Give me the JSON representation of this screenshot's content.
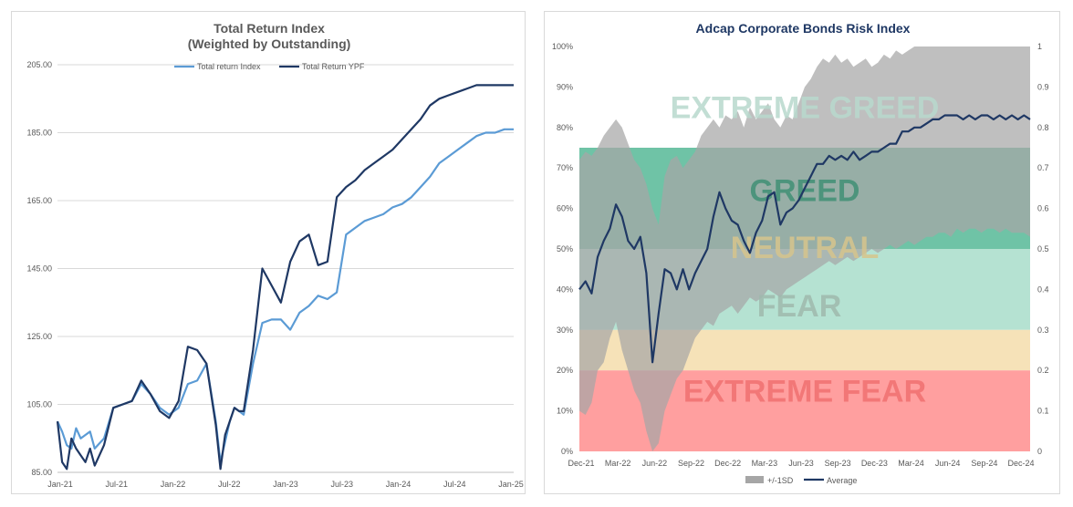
{
  "chart_data": [
    {
      "type": "line",
      "title": "Total Return Index",
      "subtitle": "(Weighted by Outstanding)",
      "ylim": [
        85,
        205
      ],
      "y_ticks": [
        "85.00",
        "105.00",
        "125.00",
        "145.00",
        "165.00",
        "185.00",
        "205.00"
      ],
      "x_ticks": [
        "Jan-21",
        "Jul-21",
        "Jan-22",
        "Jul-22",
        "Jan-23",
        "Jul-23",
        "Jan-24",
        "Jul-24",
        "Jan-25"
      ],
      "grid": true,
      "legend_position": "top",
      "series": [
        {
          "name": "Total return Index",
          "color": "#5b9bd5",
          "x": [
            0,
            0.5,
            1,
            1.5,
            2,
            2.5,
            3,
            3.5,
            4,
            5,
            6,
            7,
            8,
            9,
            10,
            11,
            12,
            13,
            14,
            15,
            16,
            17,
            17.5,
            18,
            18.5,
            19,
            19.5,
            20,
            21,
            22,
            23,
            24,
            25,
            26,
            27,
            28,
            29,
            30,
            31,
            32,
            33,
            34,
            35,
            36,
            37,
            38,
            39,
            40,
            41,
            42,
            43,
            44,
            45,
            46,
            47,
            48,
            49
          ],
          "y": [
            100,
            97,
            93,
            92,
            98,
            95,
            96,
            97,
            92,
            95,
            104,
            105,
            106,
            111,
            108,
            104,
            102,
            104,
            111,
            112,
            117,
            100,
            88,
            94,
            100,
            104,
            103,
            102,
            117,
            129,
            130,
            130,
            127,
            132,
            134,
            137,
            136,
            138,
            155,
            157,
            159,
            160,
            161,
            163,
            164,
            166,
            169,
            172,
            176,
            178,
            180,
            182,
            184,
            185,
            185,
            186,
            186
          ]
        },
        {
          "name": "Total Return YPF",
          "color": "#1f3864",
          "x": [
            0,
            0.5,
            1,
            1.5,
            2,
            2.5,
            3,
            3.5,
            4,
            5,
            6,
            7,
            8,
            9,
            10,
            11,
            12,
            13,
            14,
            15,
            16,
            17,
            17.5,
            18,
            18.5,
            19,
            19.5,
            20,
            21,
            22,
            23,
            24,
            25,
            26,
            27,
            28,
            29,
            30,
            31,
            32,
            33,
            34,
            35,
            36,
            37,
            38,
            39,
            40,
            41,
            42,
            43,
            44,
            45,
            46,
            47,
            48,
            49
          ],
          "y": [
            100,
            88,
            86,
            95,
            92,
            90,
            88,
            92,
            87,
            93,
            104,
            105,
            106,
            112,
            108,
            103,
            101,
            106,
            122,
            121,
            117,
            99,
            86,
            96,
            100,
            104,
            103,
            103,
            121,
            145,
            140,
            135,
            147,
            153,
            155,
            146,
            147,
            166,
            169,
            171,
            174,
            176,
            178,
            180,
            183,
            186,
            189,
            193,
            195,
            196,
            197,
            198,
            199,
            199,
            199,
            199,
            199
          ]
        }
      ]
    },
    {
      "type": "line",
      "title": "Adcap Corporate Bonds Risk Index",
      "ylim": [
        0,
        1
      ],
      "y_ticks_left": [
        "0%",
        "10%",
        "20%",
        "30%",
        "40%",
        "50%",
        "60%",
        "70%",
        "80%",
        "90%",
        "100%"
      ],
      "y_ticks_right": [
        "0",
        "0.1",
        "0.2",
        "0.3",
        "0.4",
        "0.5",
        "0.6",
        "0.7",
        "0.8",
        "0.9",
        "1"
      ],
      "x_ticks": [
        "Dec-21",
        "Mar-22",
        "Jun-22",
        "Sep-22",
        "Dec-22",
        "Mar-23",
        "Jun-23",
        "Sep-23",
        "Dec-23",
        "Mar-24",
        "Jun-24",
        "Sep-24",
        "Dec-24"
      ],
      "legend_position": "bottom",
      "bands": [
        {
          "label": "EXTREME GREED",
          "from": 0.75,
          "to": 1.0,
          "fill": "#ffffff",
          "text_color": "#b7d8cc"
        },
        {
          "label": "GREED",
          "from": 0.5,
          "to": 0.75,
          "fill": "#6fc3a6",
          "text_color": "#3f8f74"
        },
        {
          "label": "NEUTRAL",
          "from": 0.3,
          "to": 0.5,
          "fill": "#b5e2d2",
          "text_color": "#d6c48c"
        },
        {
          "label": "FEAR",
          "from": 0.3,
          "to": 0.5,
          "fill": "#b5e2d2",
          "text_color": "#9fb8ad"
        },
        {
          "label": "",
          "from": 0.2,
          "to": 0.3,
          "fill": "#f6e2b8",
          "text_color": "#e0a070"
        },
        {
          "label": "EXTREME FEAR",
          "from": 0.0,
          "to": 0.2,
          "fill": "#ff9f9f",
          "text_color": "#f07070"
        }
      ],
      "series": [
        {
          "name": "+/-1SD",
          "color": "#a6a6a6",
          "x": [
            0,
            0.5,
            1,
            1.5,
            2,
            2.5,
            3,
            3.5,
            4,
            4.5,
            5,
            5.5,
            6,
            6.5,
            7,
            7.5,
            8,
            8.5,
            9,
            9.5,
            10,
            10.5,
            11,
            11.5,
            12,
            12.5,
            13,
            13.5,
            14,
            14.5,
            15,
            15.5,
            16,
            16.5,
            17,
            17.5,
            18,
            18.5,
            19,
            19.5,
            20,
            20.5,
            21,
            21.5,
            22,
            22.5,
            23,
            23.5,
            24,
            24.5,
            25,
            25.5,
            26,
            26.5,
            27,
            27.5,
            28,
            28.5,
            29,
            29.5,
            30,
            30.5,
            31,
            31.5,
            32,
            32.5,
            33,
            33.5,
            34,
            34.5,
            35,
            35.5,
            36,
            36.5,
            37
          ],
          "upper": [
            0.72,
            0.74,
            0.73,
            0.75,
            0.78,
            0.8,
            0.82,
            0.8,
            0.76,
            0.72,
            0.7,
            0.66,
            0.6,
            0.56,
            0.68,
            0.72,
            0.73,
            0.7,
            0.72,
            0.74,
            0.78,
            0.8,
            0.82,
            0.8,
            0.83,
            0.82,
            0.84,
            0.8,
            0.85,
            0.82,
            0.84,
            0.86,
            0.82,
            0.8,
            0.83,
            0.82,
            0.86,
            0.9,
            0.92,
            0.95,
            0.97,
            0.96,
            0.98,
            0.96,
            0.97,
            0.95,
            0.96,
            0.97,
            0.95,
            0.96,
            0.98,
            0.97,
            0.99,
            0.98,
            0.99,
            1,
            1,
            1,
            1,
            1,
            1,
            1,
            1,
            1,
            1,
            1,
            1,
            1,
            1,
            1,
            1,
            1,
            1,
            1,
            1
          ],
          "lower": [
            0.1,
            0.09,
            0.12,
            0.2,
            0.22,
            0.28,
            0.32,
            0.25,
            0.2,
            0.15,
            0.12,
            0.05,
            0.0,
            0.02,
            0.1,
            0.14,
            0.18,
            0.2,
            0.24,
            0.28,
            0.3,
            0.32,
            0.31,
            0.34,
            0.35,
            0.36,
            0.34,
            0.36,
            0.38,
            0.37,
            0.38,
            0.4,
            0.39,
            0.38,
            0.4,
            0.41,
            0.42,
            0.43,
            0.44,
            0.45,
            0.46,
            0.47,
            0.46,
            0.47,
            0.48,
            0.47,
            0.48,
            0.49,
            0.5,
            0.49,
            0.5,
            0.51,
            0.5,
            0.51,
            0.52,
            0.51,
            0.52,
            0.53,
            0.53,
            0.54,
            0.54,
            0.53,
            0.55,
            0.54,
            0.55,
            0.55,
            0.54,
            0.55,
            0.55,
            0.54,
            0.55,
            0.54,
            0.54,
            0.54,
            0.53
          ]
        },
        {
          "name": "Average",
          "color": "#1f3864",
          "x": [
            0,
            0.5,
            1,
            1.5,
            2,
            2.5,
            3,
            3.5,
            4,
            4.5,
            5,
            5.5,
            6,
            6.5,
            7,
            7.5,
            8,
            8.5,
            9,
            9.5,
            10,
            10.5,
            11,
            11.5,
            12,
            12.5,
            13,
            13.5,
            14,
            14.5,
            15,
            15.5,
            16,
            16.5,
            17,
            17.5,
            18,
            18.5,
            19,
            19.5,
            20,
            20.5,
            21,
            21.5,
            22,
            22.5,
            23,
            23.5,
            24,
            24.5,
            25,
            25.5,
            26,
            26.5,
            27,
            27.5,
            28,
            28.5,
            29,
            29.5,
            30,
            30.5,
            31,
            31.5,
            32,
            32.5,
            33,
            33.5,
            34,
            34.5,
            35,
            35.5,
            36,
            36.5,
            37
          ],
          "y": [
            0.4,
            0.42,
            0.39,
            0.48,
            0.52,
            0.55,
            0.61,
            0.58,
            0.52,
            0.5,
            0.53,
            0.44,
            0.22,
            0.34,
            0.45,
            0.44,
            0.4,
            0.45,
            0.4,
            0.44,
            0.47,
            0.5,
            0.58,
            0.64,
            0.6,
            0.57,
            0.56,
            0.52,
            0.49,
            0.54,
            0.57,
            0.63,
            0.64,
            0.56,
            0.59,
            0.6,
            0.62,
            0.65,
            0.68,
            0.71,
            0.71,
            0.73,
            0.72,
            0.73,
            0.72,
            0.74,
            0.72,
            0.73,
            0.74,
            0.74,
            0.75,
            0.76,
            0.76,
            0.79,
            0.79,
            0.8,
            0.8,
            0.81,
            0.82,
            0.82,
            0.83,
            0.83,
            0.83,
            0.82,
            0.83,
            0.82,
            0.83,
            0.83,
            0.82,
            0.83,
            0.82,
            0.83,
            0.82,
            0.83,
            0.82
          ]
        }
      ]
    }
  ]
}
